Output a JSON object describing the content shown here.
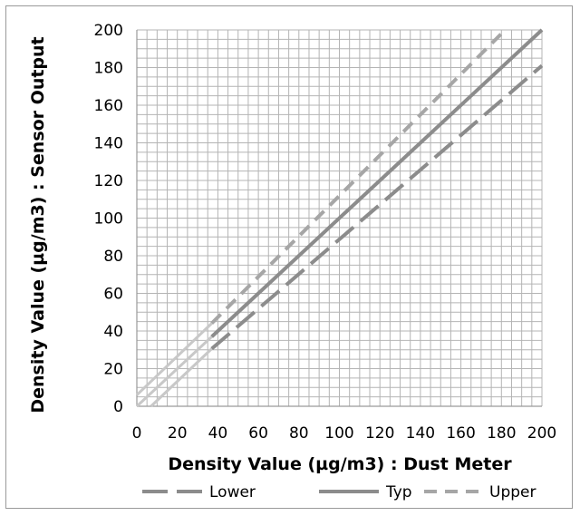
{
  "chart_data": {
    "type": "line",
    "title": "",
    "xlabel": "Density Value (µg/m3) :  Dust Meter",
    "ylabel": "Density Value (µg/m3) :  Sensor Output",
    "xlim": [
      0,
      200
    ],
    "ylim": [
      0,
      200
    ],
    "x_ticks": [
      0,
      20,
      40,
      60,
      80,
      100,
      120,
      140,
      160,
      180,
      200
    ],
    "y_ticks": [
      0,
      20,
      40,
      60,
      80,
      100,
      120,
      140,
      160,
      180,
      200
    ],
    "grid": true,
    "legend_position": "bottom",
    "colors": {
      "lower": "#8c8c8c",
      "typ": "#8c8c8c",
      "upper": "#a6a6a6",
      "extension": "#c8c8c8",
      "grid": "#b4b4b4"
    },
    "series": [
      {
        "name": "Lower",
        "style": "long-dash",
        "x": [
          37,
          200
        ],
        "values": [
          30.6,
          181
        ]
      },
      {
        "name": "Typ",
        "style": "solid",
        "x": [
          37,
          200
        ],
        "values": [
          37,
          200
        ]
      },
      {
        "name": "Upper",
        "style": "dash",
        "x": [
          37,
          180
        ],
        "values": [
          44.1,
          198
        ]
      }
    ],
    "extensions": [
      {
        "series": "Lower",
        "x": [
          7,
          37
        ],
        "values": [
          0,
          30.6
        ]
      },
      {
        "series": "Typ",
        "x": [
          0,
          37
        ],
        "values": [
          0,
          37
        ]
      },
      {
        "series": "Upper",
        "x": [
          0,
          37
        ],
        "values": [
          6,
          44.1
        ]
      }
    ]
  }
}
